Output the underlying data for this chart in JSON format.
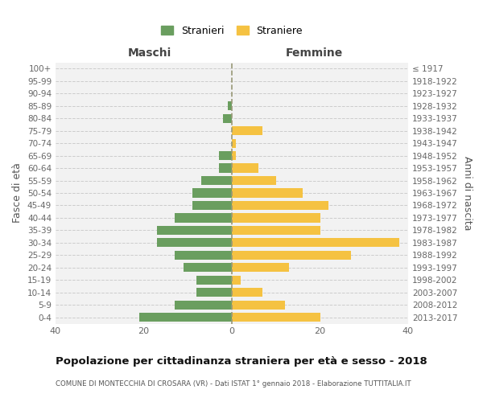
{
  "age_groups": [
    "0-4",
    "5-9",
    "10-14",
    "15-19",
    "20-24",
    "25-29",
    "30-34",
    "35-39",
    "40-44",
    "45-49",
    "50-54",
    "55-59",
    "60-64",
    "65-69",
    "70-74",
    "75-79",
    "80-84",
    "85-89",
    "90-94",
    "95-99",
    "100+"
  ],
  "birth_years": [
    "2013-2017",
    "2008-2012",
    "2003-2007",
    "1998-2002",
    "1993-1997",
    "1988-1992",
    "1983-1987",
    "1978-1982",
    "1973-1977",
    "1968-1972",
    "1963-1967",
    "1958-1962",
    "1953-1957",
    "1948-1952",
    "1943-1947",
    "1938-1942",
    "1933-1937",
    "1928-1932",
    "1923-1927",
    "1918-1922",
    "≤ 1917"
  ],
  "maschi": [
    21,
    13,
    8,
    8,
    11,
    13,
    17,
    17,
    13,
    9,
    9,
    7,
    3,
    3,
    0,
    0,
    2,
    1,
    0,
    0,
    0
  ],
  "femmine": [
    20,
    12,
    7,
    2,
    13,
    27,
    38,
    20,
    20,
    22,
    16,
    10,
    6,
    1,
    1,
    7,
    0,
    0,
    0,
    0,
    0
  ],
  "maschi_color": "#6a9e5f",
  "femmine_color": "#f5c242",
  "bg_color": "#f2f2f2",
  "bar_height": 0.72,
  "xlim": 40,
  "title": "Popolazione per cittadinanza straniera per età e sesso - 2018",
  "subtitle": "COMUNE DI MONTECCHIA DI CROSARA (VR) - Dati ISTAT 1° gennaio 2018 - Elaborazione TUTTITALIA.IT",
  "ylabel_left": "Fasce di età",
  "ylabel_right": "Anni di nascita",
  "legend_maschi": "Stranieri",
  "legend_femmine": "Straniere",
  "header_maschi": "Maschi",
  "header_femmine": "Femmine"
}
